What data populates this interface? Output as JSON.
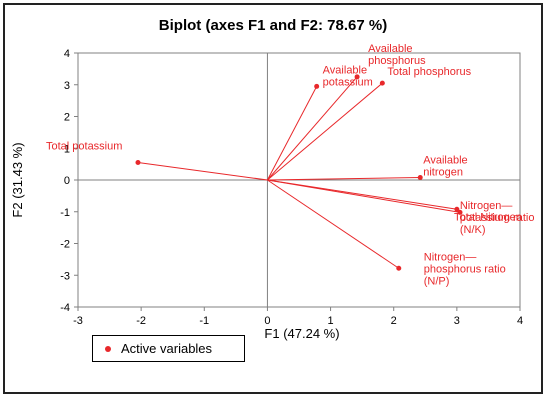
{
  "chart_data": {
    "type": "scatter",
    "subtype": "biplot",
    "title": "Biplot (axes F1 and F2: 78.67 %)",
    "xlabel": "F1 (47.24 %)",
    "ylabel": "F2 (31.43 %)",
    "xlim": [
      -3,
      4
    ],
    "ylim": [
      -4,
      4
    ],
    "xticks": [
      "-3",
      "-2",
      "-1",
      "0",
      "1",
      "2",
      "3",
      "4"
    ],
    "yticks": [
      "4",
      "3",
      "2",
      "1",
      "0",
      "-1",
      "-2",
      "-3",
      "-4"
    ],
    "grid": false,
    "legend": {
      "position": "bottom-left",
      "entries": [
        "Active variables"
      ]
    },
    "series": [
      {
        "name": "Active variables",
        "color": "#e8282b",
        "points": [
          {
            "label": [
              "Total potassium"
            ],
            "x": -2.05,
            "y": 0.55
          },
          {
            "label": [
              "Available",
              "potassium"
            ],
            "x": 0.78,
            "y": 2.95
          },
          {
            "label": [
              "Available",
              "phosphorus"
            ],
            "x": 1.42,
            "y": 3.25
          },
          {
            "label": [
              "Total phosphorus"
            ],
            "x": 1.82,
            "y": 3.05
          },
          {
            "label": [
              "Available",
              "nitrogen"
            ],
            "x": 2.42,
            "y": 0.08
          },
          {
            "label": [
              "Nitrogen—",
              "potassium ratio",
              "(N/K)"
            ],
            "x": 3.0,
            "y": -0.92
          },
          {
            "label": [
              "Total Nitrogen"
            ],
            "x": 3.05,
            "y": -1.02
          },
          {
            "label": [
              "Nitrogen—",
              "phosphorus ratio",
              "(N/P)"
            ],
            "x": 2.08,
            "y": -2.78
          }
        ]
      }
    ]
  }
}
